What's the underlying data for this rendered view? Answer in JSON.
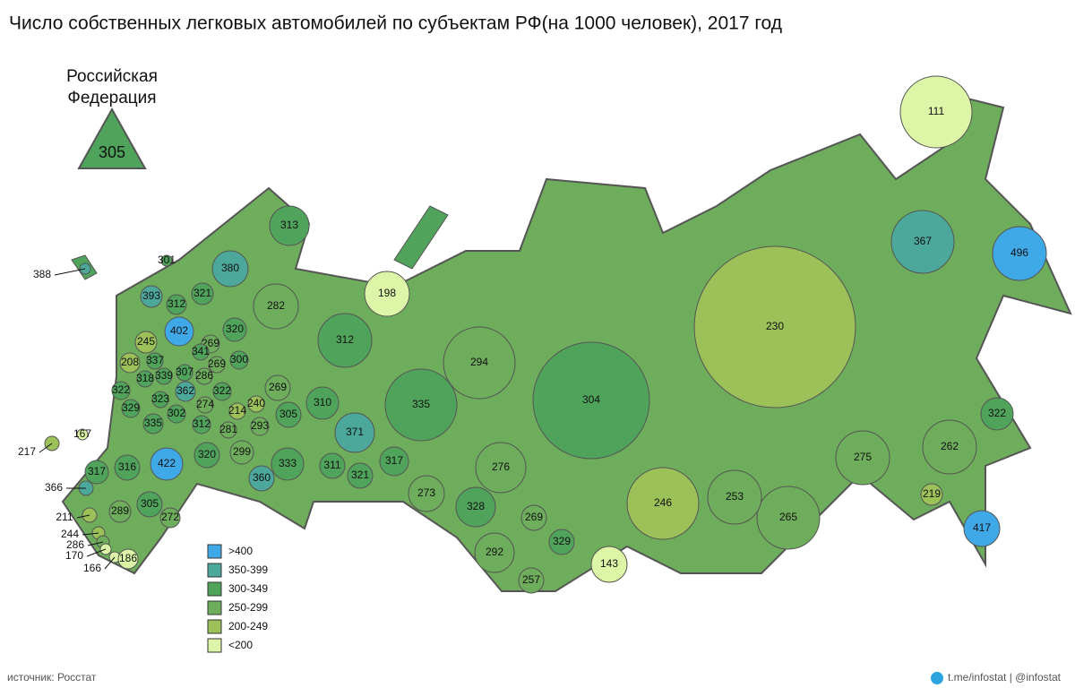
{
  "title": "Число собственных легковых автомобилей по субъектам РФ(на 1000 человек), 2017 год",
  "national": {
    "label": [
      "Российская",
      "Федерация"
    ],
    "value": 305
  },
  "legend": [
    {
      "label": ">400",
      "color": "#3fa9e8",
      "min": 400
    },
    {
      "label": "350-399",
      "color": "#4ba89a",
      "min": 350
    },
    {
      "label": "300-349",
      "color": "#4fa35b",
      "min": 300
    },
    {
      "label": "250-299",
      "color": "#6ead5b",
      "min": 250
    },
    {
      "label": "200-249",
      "color": "#9cc158",
      "min": 200
    },
    {
      "label": "<200",
      "color": "#ddf5a6"
    }
  ],
  "regions": [
    111,
    496,
    367,
    230,
    304,
    294,
    198,
    313,
    380,
    282,
    312,
    335,
    371,
    310,
    269,
    305,
    322,
    262,
    275,
    219,
    417,
    265,
    253,
    246,
    143,
    329,
    269,
    257,
    292,
    328,
    273,
    276,
    317,
    321,
    311,
    333,
    360,
    299,
    320,
    422,
    316,
    317,
    366,
    305,
    272,
    289,
    211,
    244,
    286,
    170,
    166,
    186,
    217,
    167,
    388,
    301,
    393,
    321,
    312,
    402,
    320,
    269,
    245,
    341,
    300,
    208,
    337,
    307,
    286,
    269,
    318,
    339,
    322,
    362,
    322,
    323,
    240,
    214,
    274,
    329,
    302,
    293,
    281,
    312,
    335
  ],
  "source": "источник: Росстат",
  "credit": "t.me/infostat | @infostat"
}
